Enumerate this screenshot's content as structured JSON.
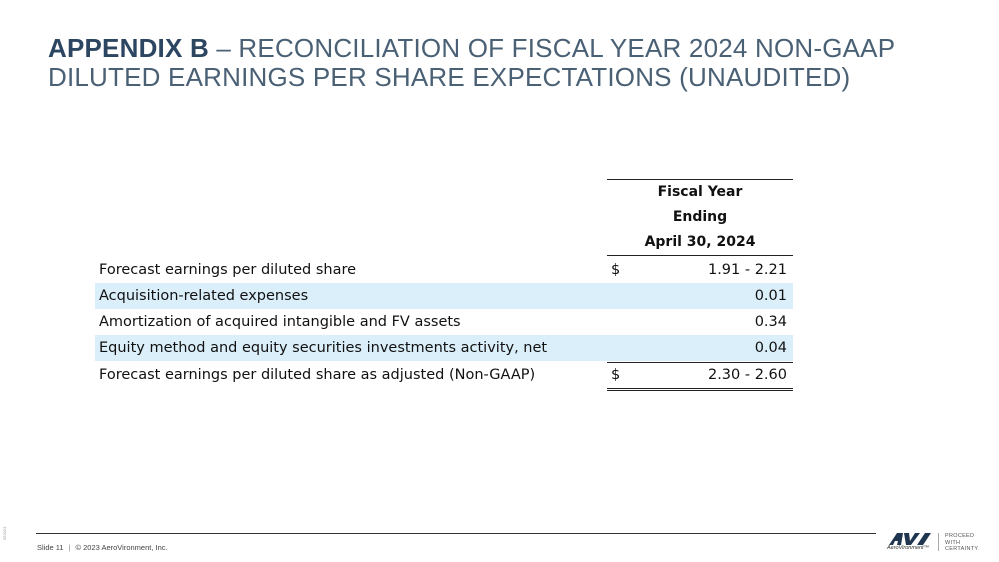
{
  "title": {
    "strong": "APPENDIX B",
    "rest": " – RECONCILIATION OF FISCAL YEAR 2024 NON-GAAP DILUTED EARNINGS PER SHARE EXPECTATIONS (UNAUDITED)"
  },
  "table": {
    "header": [
      "Fiscal Year",
      "Ending",
      "April 30, 2024"
    ],
    "rows": [
      {
        "label": "Forecast earnings per diluted share",
        "dollar": "$",
        "value": "1.91 - 2.21"
      },
      {
        "label": "Acquisition-related expenses",
        "dollar": "",
        "value": "0.01"
      },
      {
        "label": "Amortization of acquired intangible and FV assets",
        "dollar": "",
        "value": "0.34"
      },
      {
        "label": "Equity method and equity securities investments activity, net",
        "dollar": "",
        "value": "0.04"
      },
      {
        "label": "Forecast earnings per diluted share as adjusted (Non-GAAP)",
        "dollar": "$",
        "value": "2.30 - 2.60"
      }
    ]
  },
  "footer": {
    "slide": "Slide 11",
    "separator": "|",
    "copyright": "© 2023 AeroVironment, Inc.",
    "side_code": "092023"
  },
  "logo": {
    "brand": "AeroVironment™",
    "tagline": [
      "PROCEED",
      "WITH",
      "CERTAINTY"
    ]
  },
  "colors": {
    "title": "#2c4560",
    "row_shade": "#dbeffa",
    "logo": "#1f3550"
  }
}
